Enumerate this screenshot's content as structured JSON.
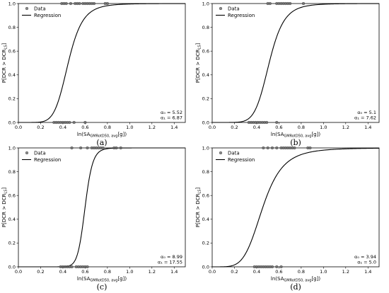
{
  "chart_data": [
    {
      "panel": "(a)",
      "type": "scatter",
      "series": [
        {
          "name": "Data",
          "kind": "points",
          "x0": [
            0.32,
            0.34,
            0.36,
            0.38,
            0.4,
            0.42,
            0.44,
            0.46,
            0.5,
            0.6
          ],
          "x1": [
            0.39,
            0.41,
            0.43,
            0.47,
            0.51,
            0.53,
            0.55,
            0.58,
            0.6,
            0.62,
            0.64,
            0.66,
            0.68,
            0.78,
            0.8
          ]
        },
        {
          "name": "Regression",
          "kind": "logistic",
          "a0": 5.52,
          "a1": 6.87
        }
      ],
      "coef_text": [
        "α₀ = 5.52",
        "α₁ = 6.87"
      ],
      "xlim": [
        0.0,
        1.5
      ],
      "ylim": [
        0.0,
        1.0
      ],
      "xticks": [
        "0.0",
        "0.2",
        "0.4",
        "0.6",
        "0.8",
        "1.0",
        "1.2",
        "1.4"
      ],
      "yticks": [
        "0.0",
        "0.2",
        "0.4",
        "0.6",
        "0.8",
        "1.0"
      ]
    },
    {
      "panel": "(b)",
      "type": "scatter",
      "series": [
        {
          "name": "Data",
          "kind": "points",
          "x0": [
            0.33,
            0.35,
            0.37,
            0.39,
            0.41,
            0.43,
            0.45,
            0.47,
            0.49,
            0.58
          ],
          "x1": [
            0.5,
            0.52,
            0.58,
            0.6,
            0.62,
            0.64,
            0.66,
            0.68,
            0.7,
            0.82
          ]
        },
        {
          "name": "Regression",
          "kind": "logistic",
          "a0": 5.1,
          "a1": 7.62
        }
      ],
      "coef_text": [
        "α₀ = 5.1",
        "α₁ = 7.62"
      ],
      "xlim": [
        0.0,
        1.5
      ],
      "ylim": [
        0.0,
        1.0
      ],
      "xticks": [
        "0.0",
        "0.2",
        "0.4",
        "0.6",
        "0.8",
        "1.0",
        "1.2",
        "1.4"
      ],
      "yticks": [
        "0.0",
        "0.2",
        "0.4",
        "0.6",
        "0.8",
        "1.0"
      ]
    },
    {
      "panel": "(c)",
      "type": "scatter",
      "series": [
        {
          "name": "Data",
          "kind": "points",
          "x0": [
            0.38,
            0.4,
            0.42,
            0.44,
            0.46,
            0.48,
            0.52,
            0.54,
            0.56,
            0.58,
            0.6,
            0.62
          ],
          "x1": [
            0.48,
            0.56,
            0.62,
            0.66,
            0.68,
            0.7,
            0.72,
            0.74,
            0.76,
            0.86,
            0.88,
            0.92
          ]
        },
        {
          "name": "Regression",
          "kind": "logistic",
          "a0": 8.99,
          "a1": 17.55
        }
      ],
      "coef_text": [
        "α₀ = 8.99",
        "α₁ = 17.55"
      ],
      "xlim": [
        0.0,
        1.5
      ],
      "ylim": [
        0.0,
        1.0
      ],
      "xticks": [
        "0.0",
        "0.2",
        "0.4",
        "0.6",
        "0.8",
        "1.0",
        "1.2",
        "1.4"
      ],
      "yticks": [
        "0.0",
        "0.2",
        "0.4",
        "0.6",
        "0.8",
        "1.0"
      ]
    },
    {
      "panel": "(d)",
      "type": "scatter",
      "series": [
        {
          "name": "Data",
          "kind": "points",
          "x0": [
            0.38,
            0.4,
            0.42,
            0.44,
            0.46,
            0.48,
            0.5,
            0.52,
            0.54,
            0.58,
            0.62
          ],
          "x1": [
            0.46,
            0.5,
            0.54,
            0.58,
            0.62,
            0.64,
            0.66,
            0.68,
            0.7,
            0.72,
            0.74,
            0.86,
            0.88
          ]
        },
        {
          "name": "Regression",
          "kind": "logistic",
          "a0": 3.94,
          "a1": 5.0
        }
      ],
      "coef_text": [
        "α₀ = 3.94",
        "α₁ = 5.0"
      ],
      "xlim": [
        0.0,
        1.5
      ],
      "ylim": [
        0.0,
        1.0
      ],
      "xticks": [
        "0.0",
        "0.2",
        "0.4",
        "0.6",
        "0.8",
        "1.0",
        "1.2",
        "1.4"
      ],
      "yticks": [
        "0.0",
        "0.2",
        "0.4",
        "0.6",
        "0.8",
        "1.0"
      ]
    }
  ],
  "labels": {
    "ylabel": "P[DCR > DCR_LS]",
    "xlabel": "ln(SA_GMRotD50, avg[g])",
    "legend_data": "Data",
    "legend_regression": "Regression"
  }
}
